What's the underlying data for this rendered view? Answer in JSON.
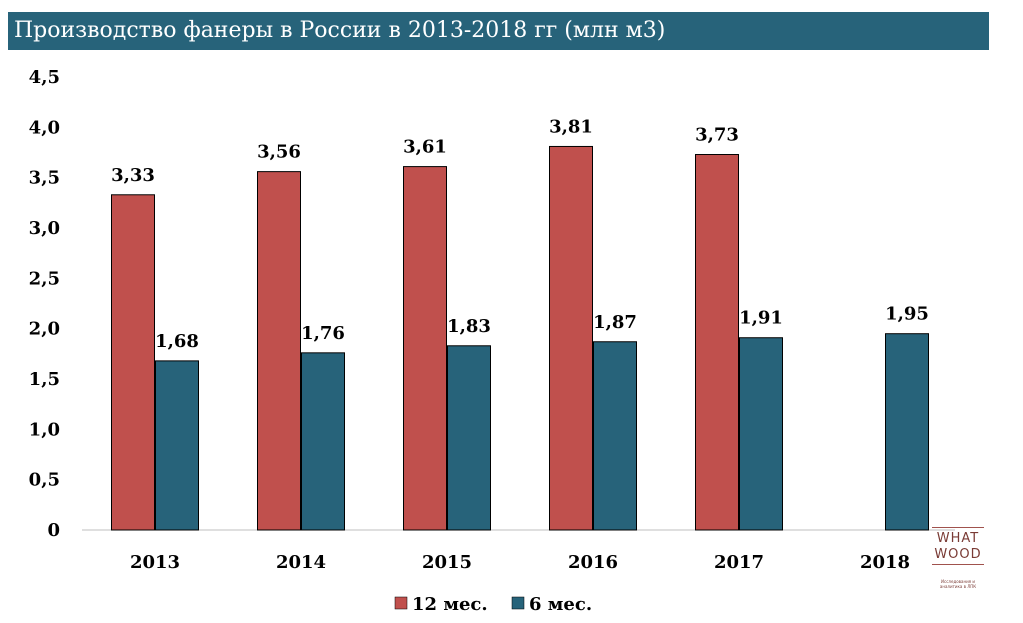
{
  "title": "Производство фанеры в России в 2013-2018 гг (млн м3)",
  "chart_data": {
    "type": "bar",
    "title": "Производство фанеры в России в 2013-2018 гг (млн м3)",
    "categories": [
      "2013",
      "2014",
      "2015",
      "2016",
      "2017",
      "2018"
    ],
    "series": [
      {
        "name": "12 мес.",
        "color": "#c0504d",
        "values": [
          3.33,
          3.56,
          3.61,
          3.81,
          3.73,
          null
        ],
        "labels": [
          "3,33",
          "3,56",
          "3,61",
          "3,81",
          "3,73",
          ""
        ]
      },
      {
        "name": "6 мес.",
        "color": "#27637a",
        "values": [
          1.68,
          1.76,
          1.83,
          1.87,
          1.91,
          1.95
        ],
        "labels": [
          "1,68",
          "1,76",
          "1,83",
          "1,87",
          "1,91",
          "1,95"
        ]
      }
    ],
    "ylim": [
      0,
      4.5
    ],
    "yticks": [
      0,
      0.5,
      1,
      1.5,
      2,
      2.5,
      3,
      3.5,
      4,
      4.5
    ],
    "ytick_labels": [
      "0",
      "0,5",
      "1,0",
      "1,5",
      "2,0",
      "2,5",
      "3,0",
      "3,5",
      "4,0",
      "4,5"
    ],
    "grid": false,
    "legend_position": "bottom"
  },
  "logo": {
    "word1": "WHAT",
    "word2": "WOOD",
    "tagline": "Исследования и аналитика в ЛПК"
  }
}
